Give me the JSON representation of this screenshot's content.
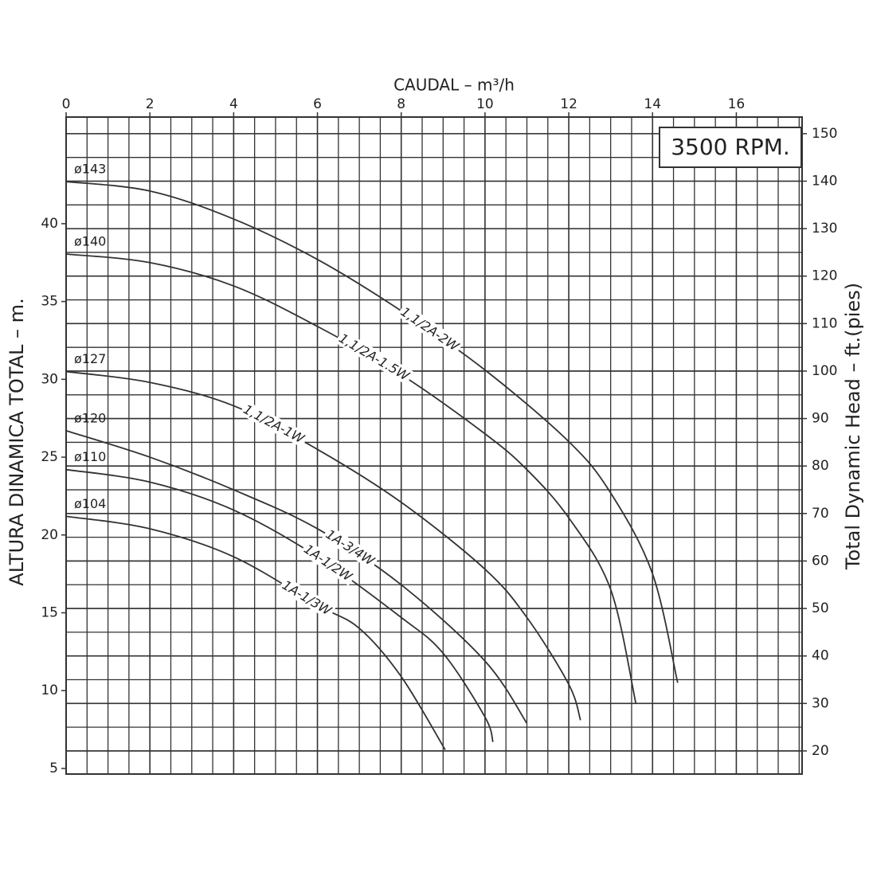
{
  "chart_data": {
    "type": "line",
    "title": "CAUDAL  – m³/h",
    "annotation": "3500 RPM.",
    "y_label": "ALTURA DINAMICA TOTAL  –  m.",
    "y2_label": "Total Dynamic Head  –  ft.(pies)",
    "xlim": [
      0,
      17.57
    ],
    "xticks": [
      0,
      2,
      4,
      6,
      8,
      10,
      12,
      14,
      16
    ],
    "ylim": [
      4.64,
      46.85
    ],
    "yticks": [
      5,
      10,
      15,
      20,
      25,
      30,
      35,
      40
    ],
    "y2lim": [
      15.13,
      153.5
    ],
    "y2ticks": [
      20,
      30,
      40,
      50,
      60,
      70,
      80,
      90,
      100,
      110,
      120,
      130,
      140,
      150
    ],
    "grid": true,
    "color": "#333333",
    "series": [
      {
        "name": "1,1/2A-2W",
        "impeller": "ø143",
        "x": [
          0,
          2,
          4,
          6,
          8,
          10,
          12,
          13,
          14,
          14.6
        ],
        "values": [
          42.7,
          42.1,
          40.3,
          37.7,
          34.4,
          30.6,
          26,
          22.7,
          17.5,
          10.5
        ]
      },
      {
        "name": "1,1/2A-1.5W",
        "impeller": "ø140",
        "x": [
          0,
          2,
          4,
          6,
          8,
          10,
          11,
          12,
          13,
          13.6
        ],
        "values": [
          38.05,
          37.5,
          36,
          33.4,
          30.3,
          26.5,
          24.2,
          21.1,
          16.5,
          9.2
        ]
      },
      {
        "name": "1,1/2A-1W",
        "impeller": "ø127",
        "x": [
          0,
          2,
          4,
          6,
          8,
          10,
          11,
          12,
          12.28
        ],
        "values": [
          30.5,
          29.8,
          28.3,
          25.5,
          22.1,
          17.8,
          14.7,
          10.4,
          8.1
        ]
      },
      {
        "name": "1A-3/4W",
        "impeller": "ø120",
        "x": [
          0,
          2,
          4,
          6,
          8,
          10,
          11
        ],
        "values": [
          26.7,
          25,
          22.9,
          20.4,
          16.8,
          11.9,
          7.9
        ]
      },
      {
        "name": "1A-1/2W",
        "impeller": "ø110",
        "x": [
          0,
          2,
          4,
          6,
          8,
          9,
          10,
          10.19
        ],
        "values": [
          24.2,
          23.4,
          21.6,
          18.6,
          14.7,
          12.4,
          8.3,
          6.7
        ]
      },
      {
        "name": "1A-1/3W",
        "impeller": "ø104",
        "x": [
          0,
          2,
          4,
          6,
          7,
          8,
          9.05
        ],
        "values": [
          21.2,
          20.4,
          18.6,
          15.5,
          14,
          10.9,
          6.2
        ]
      }
    ]
  }
}
